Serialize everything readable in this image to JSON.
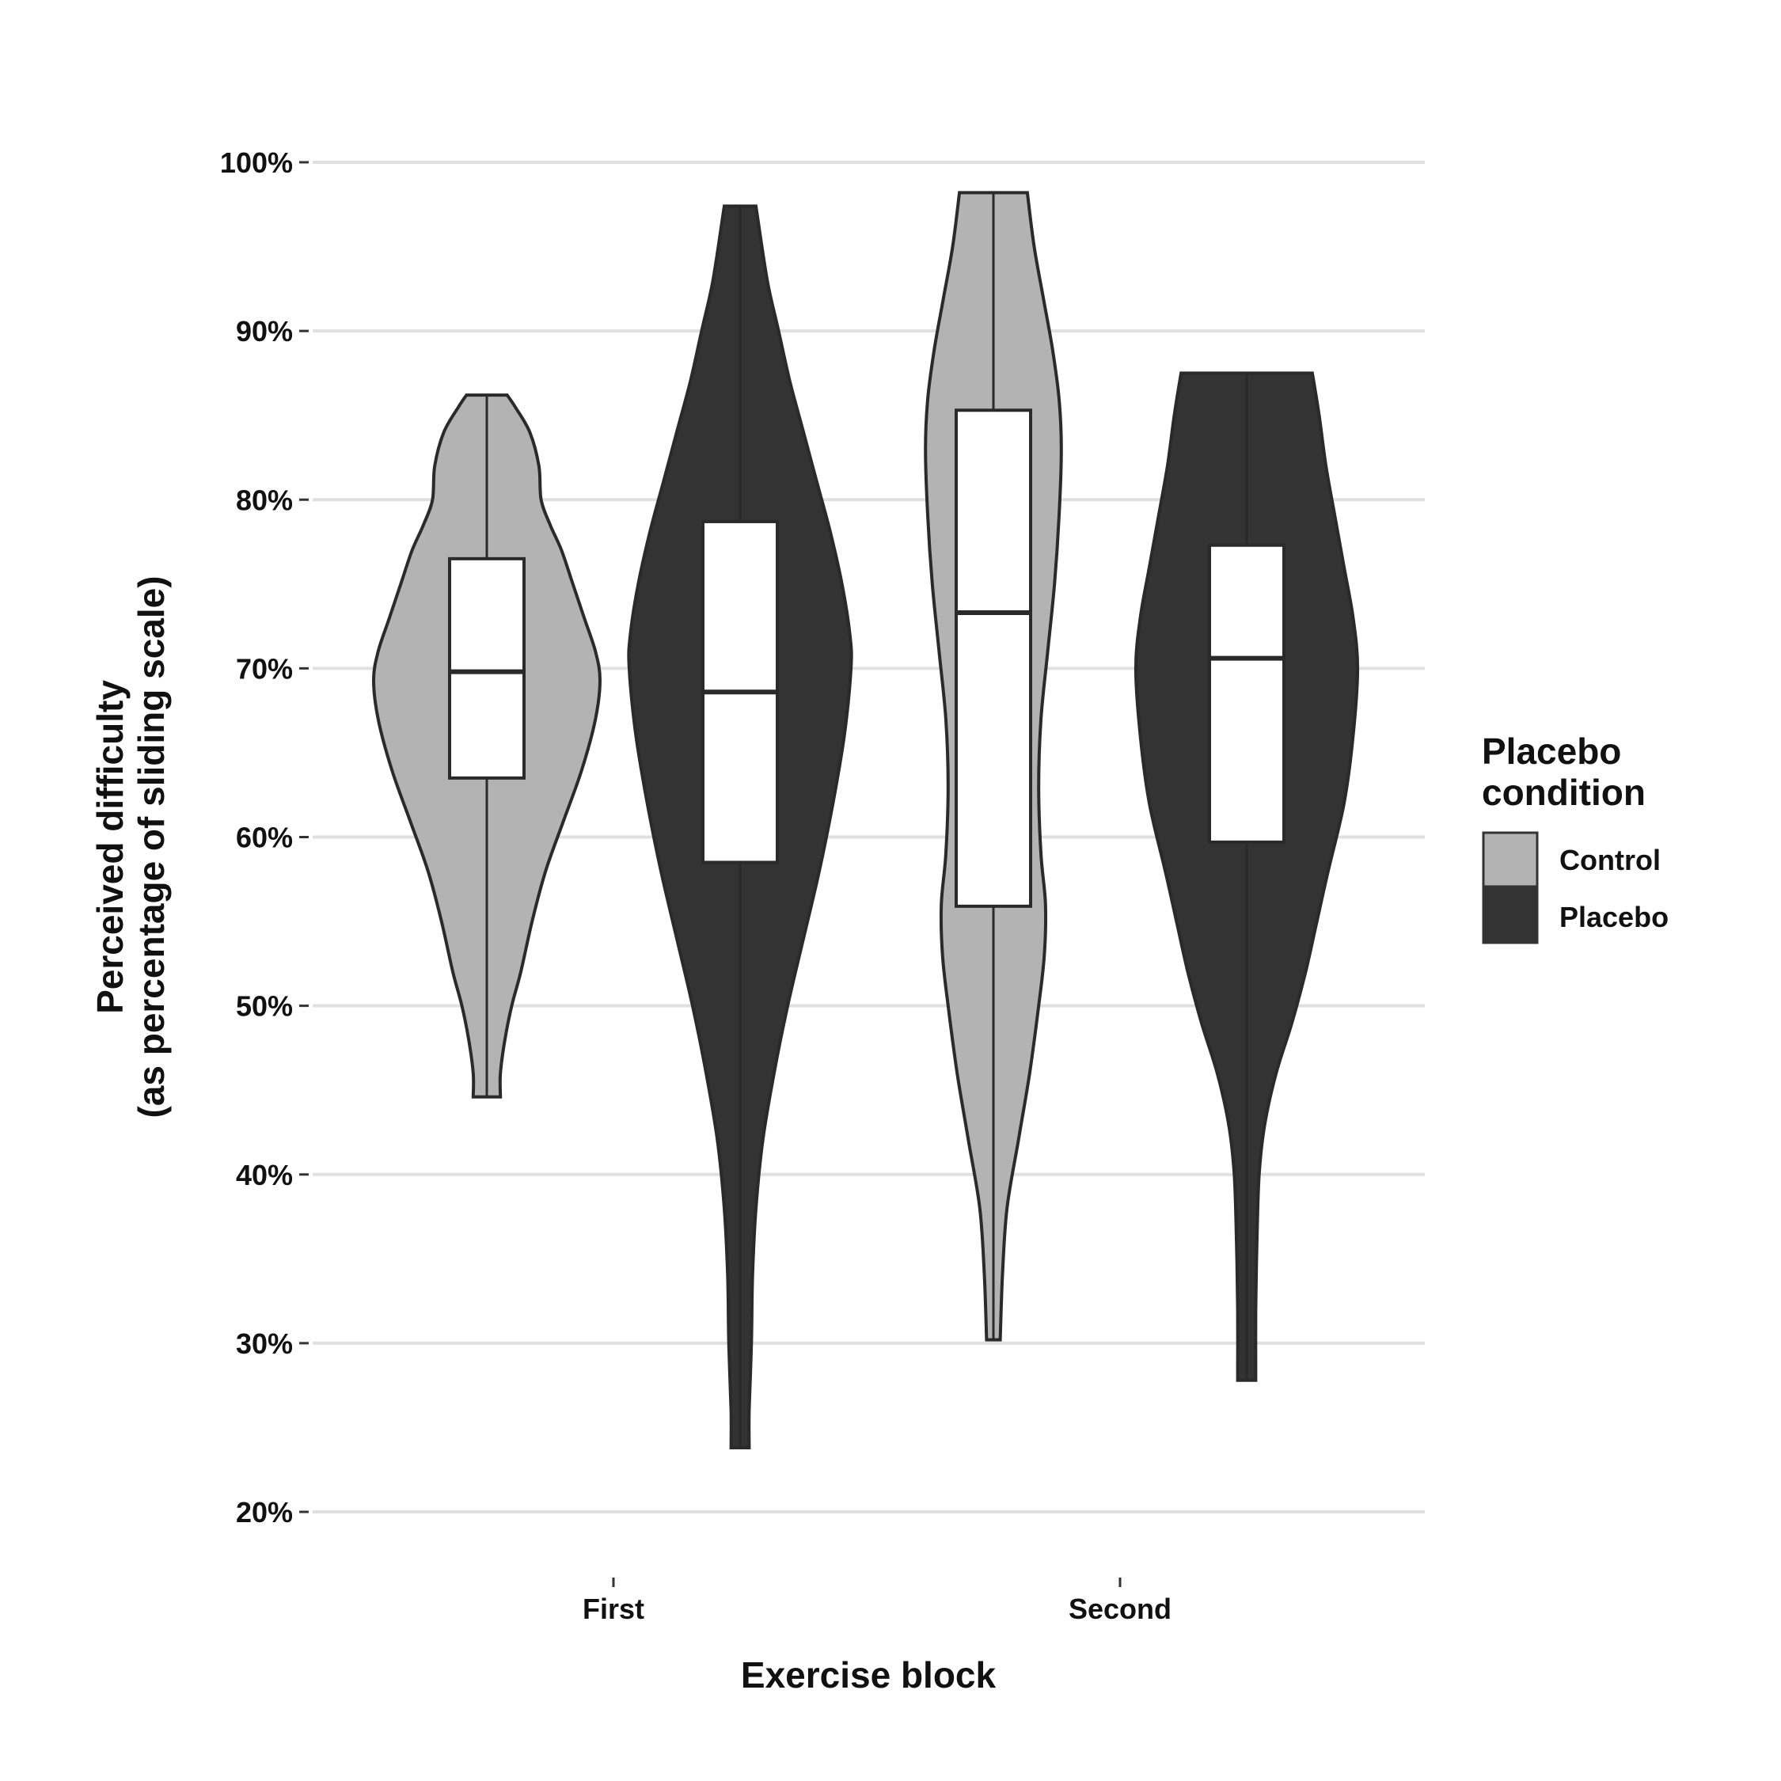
{
  "chart_data": {
    "type": "violin",
    "xlabel": "Exercise block",
    "ylabel_lines": [
      "Perceived difficulty",
      "(as percentage of sliding scale)"
    ],
    "ylim": [
      20,
      100
    ],
    "yticks": [
      20,
      30,
      40,
      50,
      60,
      70,
      80,
      90,
      100
    ],
    "ytick_labels": [
      "20%",
      "30%",
      "40%",
      "50%",
      "60%",
      "70%",
      "80%",
      "90%",
      "100%"
    ],
    "categories": [
      "First",
      "Second"
    ],
    "grid": "horizontal",
    "legend": {
      "title_lines": [
        "Placebo",
        "condition"
      ],
      "placement": "right",
      "entries": [
        {
          "label": "Control",
          "color": "#b3b3b3"
        },
        {
          "label": "Placebo",
          "color": "#333333"
        }
      ]
    },
    "series": [
      {
        "name": "Control",
        "color": "#b3b3b3",
        "groups": [
          {
            "category": "First",
            "min": 44.6,
            "max": 86.2,
            "q1": 63.5,
            "median": 69.8,
            "q3": 76.5,
            "density": [
              [
                44.6,
                0.12
              ],
              [
                46,
                0.12
              ],
              [
                48,
                0.16
              ],
              [
                50,
                0.22
              ],
              [
                52,
                0.3
              ],
              [
                55,
                0.4
              ],
              [
                58,
                0.52
              ],
              [
                61,
                0.68
              ],
              [
                64,
                0.84
              ],
              [
                67,
                0.96
              ],
              [
                69.3,
                1.0
              ],
              [
                71,
                0.96
              ],
              [
                73,
                0.86
              ],
              [
                75,
                0.76
              ],
              [
                77,
                0.66
              ],
              [
                78.5,
                0.56
              ],
              [
                80,
                0.48
              ],
              [
                82,
                0.46
              ],
              [
                84,
                0.38
              ],
              [
                85.5,
                0.25
              ],
              [
                86.2,
                0.18
              ]
            ]
          },
          {
            "category": "Second",
            "min": 30.2,
            "max": 98.2,
            "q1": 55.9,
            "median": 73.3,
            "q3": 85.3,
            "density": [
              [
                30.2,
                0.06
              ],
              [
                34,
                0.08
              ],
              [
                38,
                0.12
              ],
              [
                42,
                0.22
              ],
              [
                46,
                0.32
              ],
              [
                50,
                0.4
              ],
              [
                53,
                0.45
              ],
              [
                56,
                0.46
              ],
              [
                59,
                0.42
              ],
              [
                63,
                0.4
              ],
              [
                67,
                0.42
              ],
              [
                71,
                0.48
              ],
              [
                75,
                0.54
              ],
              [
                79,
                0.58
              ],
              [
                83,
                0.6
              ],
              [
                86,
                0.58
              ],
              [
                89,
                0.52
              ],
              [
                92,
                0.44
              ],
              [
                95,
                0.36
              ],
              [
                98.2,
                0.3
              ]
            ]
          }
        ]
      },
      {
        "name": "Placebo",
        "color": "#333333",
        "groups": [
          {
            "category": "First",
            "min": 23.8,
            "max": 97.4,
            "q1": 58.5,
            "median": 68.6,
            "q3": 78.7,
            "density": [
              [
                23.8,
                0.08
              ],
              [
                26,
                0.08
              ],
              [
                30,
                0.1
              ],
              [
                34,
                0.11
              ],
              [
                38,
                0.14
              ],
              [
                42,
                0.2
              ],
              [
                46,
                0.3
              ],
              [
                50,
                0.42
              ],
              [
                54,
                0.56
              ],
              [
                58,
                0.7
              ],
              [
                62,
                0.82
              ],
              [
                66,
                0.92
              ],
              [
                70,
                0.98
              ],
              [
                72,
                0.97
              ],
              [
                75,
                0.9
              ],
              [
                78,
                0.8
              ],
              [
                81,
                0.68
              ],
              [
                84,
                0.56
              ],
              [
                87,
                0.44
              ],
              [
                90,
                0.34
              ],
              [
                93,
                0.24
              ],
              [
                97.4,
                0.14
              ]
            ]
          },
          {
            "category": "Second",
            "min": 27.8,
            "max": 87.5,
            "q1": 59.7,
            "median": 70.6,
            "q3": 77.3,
            "density": [
              [
                27.8,
                0.08
              ],
              [
                32,
                0.08
              ],
              [
                36,
                0.09
              ],
              [
                40,
                0.11
              ],
              [
                43,
                0.16
              ],
              [
                46,
                0.26
              ],
              [
                49,
                0.4
              ],
              [
                52,
                0.52
              ],
              [
                55,
                0.62
              ],
              [
                58,
                0.72
              ],
              [
                62,
                0.86
              ],
              [
                66,
                0.94
              ],
              [
                70,
                0.98
              ],
              [
                73,
                0.94
              ],
              [
                76,
                0.86
              ],
              [
                79,
                0.78
              ],
              [
                82,
                0.7
              ],
              [
                85,
                0.64
              ],
              [
                87.5,
                0.58
              ]
            ]
          }
        ]
      }
    ]
  }
}
